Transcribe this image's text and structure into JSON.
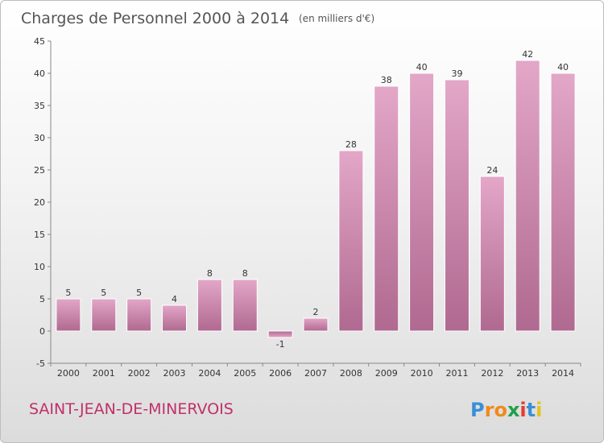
{
  "chart_data": {
    "type": "bar",
    "title": "Charges de Personnel 2000 à 2014",
    "subtitle": "(en milliers d'€)",
    "location": "SAINT-JEAN-DE-MINERVOIS",
    "categories": [
      "2000",
      "2001",
      "2002",
      "2003",
      "2004",
      "2005",
      "2006",
      "2007",
      "2008",
      "2009",
      "2010",
      "2011",
      "2012",
      "2013",
      "2014"
    ],
    "values": [
      5,
      5,
      5,
      4,
      8,
      8,
      -1,
      2,
      28,
      38,
      40,
      39,
      24,
      42,
      40
    ],
    "data_labels": [
      "5",
      "5",
      "5",
      "4",
      "8",
      "8",
      "-1",
      "2",
      "28",
      "38",
      "40",
      "39",
      "24",
      "42",
      "40"
    ],
    "ylim": [
      -5,
      45
    ],
    "yticks": [
      -5,
      0,
      5,
      10,
      15,
      20,
      25,
      30,
      35,
      40,
      45
    ],
    "grid": false,
    "legend": "none",
    "bar_color": "#c9699c"
  },
  "logo": {
    "text": "Proxiti",
    "letters": [
      {
        "ch": "P",
        "color": "#3a8fd6"
      },
      {
        "ch": "r",
        "color": "#f08a1c"
      },
      {
        "ch": "o",
        "color": "#f08a1c"
      },
      {
        "ch": "x",
        "color": "#1fa14a"
      },
      {
        "ch": "i",
        "color": "#e63b2e"
      },
      {
        "ch": "t",
        "color": "#3a8fd6"
      },
      {
        "ch": "i",
        "color": "#e6c31c"
      }
    ]
  }
}
